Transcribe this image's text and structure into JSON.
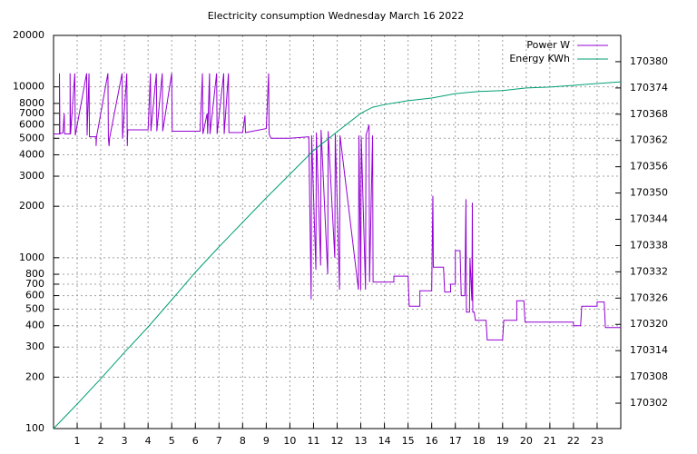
{
  "chart_data": {
    "type": "line",
    "title": "Electricity consumption Wednesday March 16 2022",
    "logscale": "y",
    "grid": true,
    "legend": "top right",
    "xlim": [
      0,
      24
    ],
    "xticks": [
      1,
      2,
      3,
      4,
      5,
      6,
      7,
      8,
      9,
      10,
      11,
      12,
      13,
      14,
      15,
      16,
      17,
      18,
      19,
      20,
      21,
      22,
      23
    ],
    "ylim": [
      100,
      20000
    ],
    "yticks": [
      100,
      200,
      300,
      400,
      500,
      600,
      700,
      800,
      1000,
      2000,
      3000,
      4000,
      5000,
      6000,
      7000,
      8000,
      10000,
      20000
    ],
    "y2lim": [
      170296.2,
      170386
    ],
    "y2ticks": [
      170302,
      170308,
      170314,
      170320,
      170326,
      170332,
      170338,
      170344,
      170350,
      170356,
      170362,
      170368,
      170374,
      170380
    ],
    "series": [
      {
        "name": "Power W",
        "color": "#9400d3",
        "x": [
          0,
          0.25,
          0.25,
          0.27,
          0.4,
          0.45,
          0.47,
          0.7,
          0.7,
          0.72,
          0.9,
          0.92,
          1.4,
          1.42,
          1.5,
          1.52,
          1.8,
          1.8,
          1.82,
          2.3,
          2.32,
          2.35,
          2.37,
          2.9,
          2.92,
          3.1,
          3.12,
          3.14,
          4.0,
          4.1,
          4.12,
          4.35,
          4.37,
          4.6,
          4.62,
          5.0,
          5.02,
          6.2,
          6.3,
          6.32,
          6.5,
          6.52,
          6.6,
          6.62,
          6.9,
          6.92,
          7.2,
          7.22,
          7.4,
          7.42,
          8.0,
          8.1,
          8.12,
          9.0,
          9.1,
          9.12,
          9.2,
          10,
          10.8,
          10.9,
          10.92,
          11.1,
          11.12,
          11.3,
          11.32,
          11.6,
          11.62,
          11.9,
          11.92,
          12.1,
          12.12,
          12.9,
          12.92,
          13.0,
          13.02,
          13.2,
          13.22,
          13.35,
          13.37,
          13.5,
          13.52,
          14.4,
          14.4,
          15,
          15.05,
          15.5,
          15.5,
          16,
          16.05,
          16.07,
          16.5,
          16.55,
          16.8,
          16.8,
          17.0,
          17.0,
          17.2,
          17.25,
          17.4,
          17.45,
          17.47,
          17.6,
          17.62,
          17.7,
          17.72,
          17.74,
          17.8,
          17.85,
          18.3,
          18.35,
          19.0,
          19.05,
          19.6,
          19.6,
          19.9,
          19.95,
          22.0,
          22.0,
          22.3,
          22.35,
          23.0,
          23.0,
          23.3,
          23.35,
          24
        ],
        "values": [
          5300,
          5300,
          12000,
          5300,
          5400,
          7000,
          5300,
          5300,
          12000,
          5300,
          12000,
          5200,
          12000,
          5200,
          12000,
          5100,
          5100,
          4500,
          5100,
          12000,
          5000,
          4500,
          5000,
          12000,
          5000,
          12000,
          4500,
          5600,
          5600,
          12000,
          5500,
          12000,
          5500,
          12000,
          5500,
          12000,
          5500,
          5500,
          12000,
          5300,
          7000,
          5300,
          12000,
          5300,
          12000,
          5300,
          12000,
          5300,
          12000,
          5400,
          5400,
          6800,
          5400,
          5700,
          12000,
          5300,
          5000,
          5000,
          5100,
          570,
          5200,
          850,
          5400,
          900,
          5600,
          800,
          5500,
          1000,
          5300,
          650,
          5200,
          650,
          5200,
          650,
          5100,
          650,
          5200,
          6000,
          720,
          5200,
          720,
          720,
          780,
          780,
          520,
          520,
          640,
          640,
          2300,
          880,
          880,
          630,
          630,
          700,
          700,
          1100,
          1100,
          600,
          600,
          2200,
          480,
          480,
          1000,
          560,
          2100,
          480,
          480,
          430,
          430,
          330,
          330,
          430,
          430,
          560,
          560,
          420,
          420,
          400,
          400,
          520,
          520,
          550,
          550,
          390,
          390
        ]
      },
      {
        "name": "Energy KWh",
        "color": "#009e73",
        "axis": "y2",
        "x": [
          0,
          1,
          2,
          3,
          4,
          5,
          6,
          7,
          8,
          9,
          10,
          11,
          12,
          13,
          13.5,
          14,
          15,
          16,
          17,
          18,
          19,
          20,
          21,
          22,
          23,
          24
        ],
        "values": [
          170296.2,
          170301.8,
          170307.6,
          170313.6,
          170319.4,
          170325.6,
          170331.9,
          170337.7,
          170343.3,
          170348.9,
          170354.3,
          170359.7,
          170364.0,
          170368.2,
          170369.6,
          170370.2,
          170371.1,
          170371.7,
          170372.7,
          170373.2,
          170373.4,
          170374.0,
          170374.2,
          170374.6,
          170375.0,
          170375.4
        ]
      }
    ]
  }
}
